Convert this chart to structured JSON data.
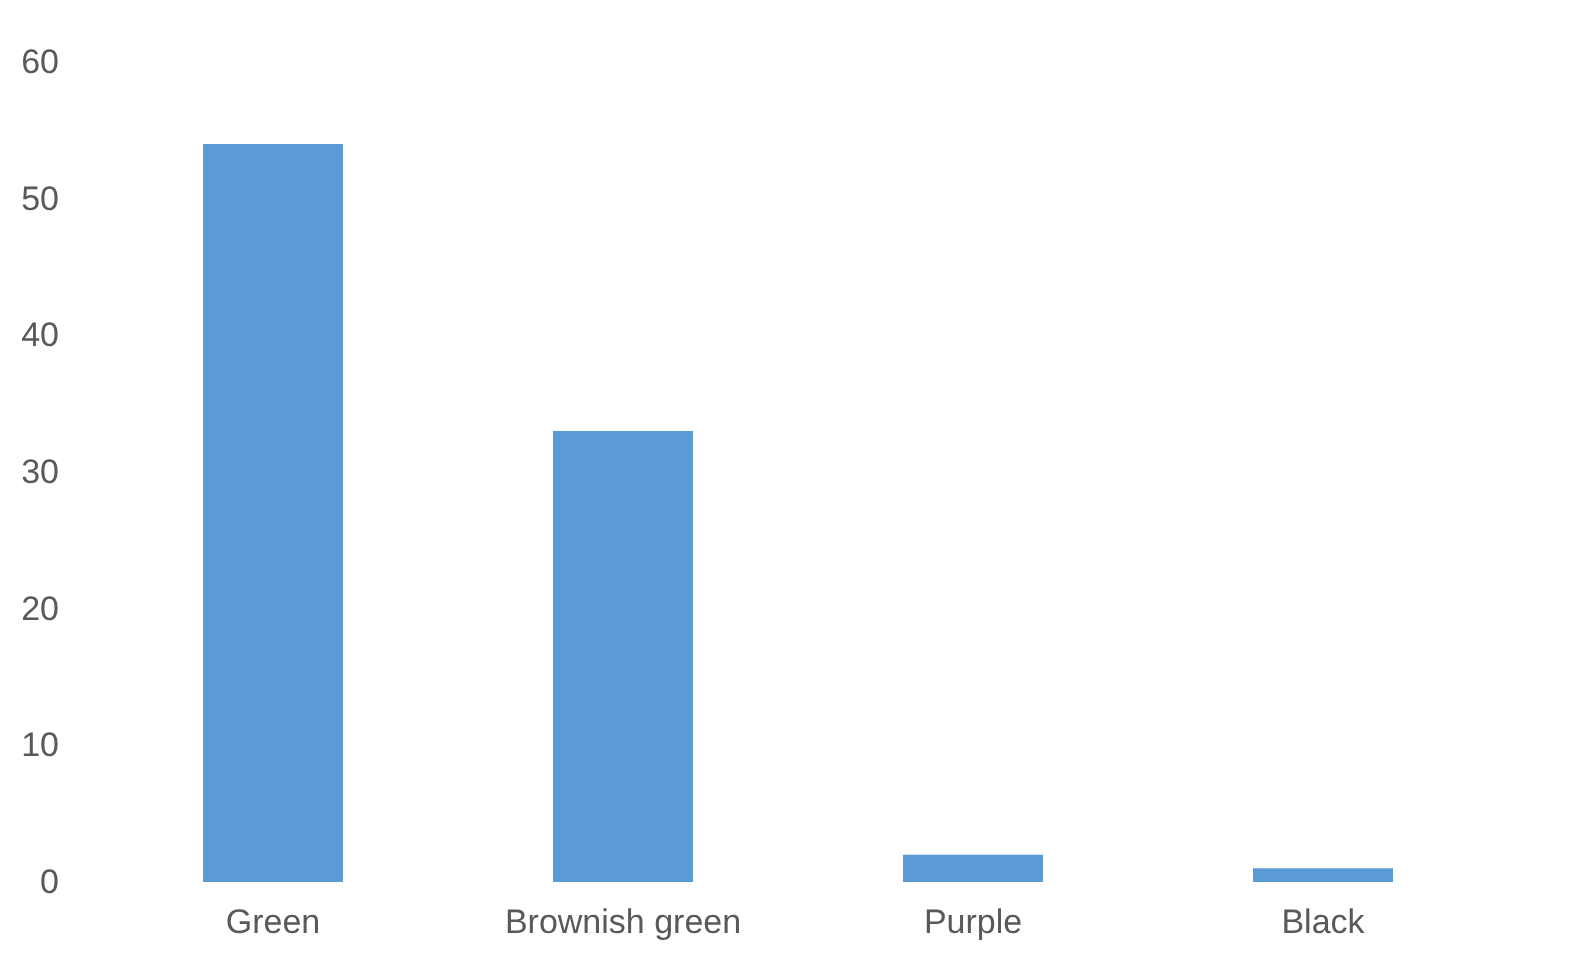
{
  "chart_data": {
    "type": "bar",
    "categories": [
      "Green",
      "Brownish green",
      "Purple",
      "Black"
    ],
    "values": [
      54,
      33,
      2,
      1
    ],
    "color": "#5b9bd5",
    "ylim": [
      0,
      60
    ],
    "yticks": [
      0,
      10,
      20,
      30,
      40,
      50,
      60
    ],
    "grid": false
  }
}
